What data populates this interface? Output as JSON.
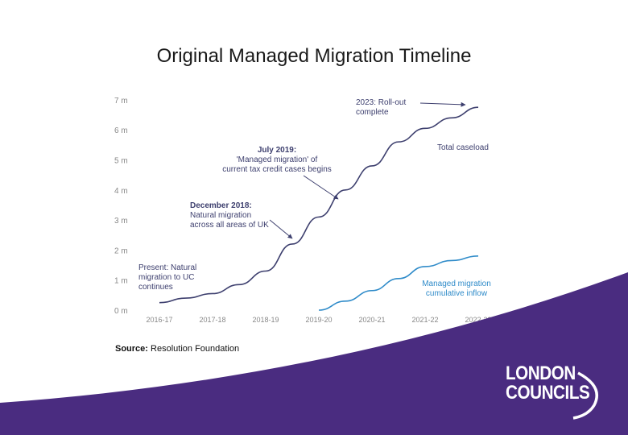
{
  "title": "Original Managed Migration Timeline",
  "source": {
    "label": "Source:",
    "text": "Resolution Foundation"
  },
  "logo": {
    "line1": "LONDON",
    "line2": "COUNCILS"
  },
  "colors": {
    "footer": "#4a2c80",
    "line": "#3d3f6e",
    "line2": "#2f8bc9",
    "tick": "#888888",
    "annot": "#3d3f6e"
  },
  "chart_data": {
    "type": "line",
    "categories": [
      "2016-17",
      "2017-18",
      "2018-19",
      "2019-20",
      "2020-21",
      "2021-22",
      "2022-23"
    ],
    "yticks": [
      "0 m",
      "1 m",
      "2 m",
      "3 m",
      "4 m",
      "5 m",
      "6 m",
      "7 m"
    ],
    "ylim": [
      0,
      7
    ],
    "series": [
      {
        "name": "Total caseload",
        "x": [
          0,
          0.5,
          1,
          1.5,
          2,
          2.5,
          3,
          3.5,
          4,
          4.5,
          5,
          5.5,
          6
        ],
        "values": [
          0.25,
          0.4,
          0.55,
          0.85,
          1.3,
          2.2,
          3.1,
          4.0,
          4.8,
          5.6,
          6.05,
          6.4,
          6.75
        ]
      },
      {
        "name": "Managed migration cumulative inflow",
        "x": [
          3,
          3.5,
          4,
          4.5,
          5,
          5.5,
          6
        ],
        "values": [
          0,
          0.3,
          0.65,
          1.05,
          1.45,
          1.65,
          1.8
        ]
      }
    ],
    "annotations": [
      {
        "id": "present",
        "lines": [
          "Present: Natural",
          "migration to UC",
          "continues"
        ]
      },
      {
        "id": "dec2018",
        "lines": [
          "December 2018:",
          "Natural migration",
          "across all areas of UK"
        ]
      },
      {
        "id": "jul2019",
        "lines": [
          "July 2019:",
          "'Managed migration' of",
          "current tax credit cases begins"
        ]
      },
      {
        "id": "roll",
        "lines": [
          "2023: Roll-out",
          "complete"
        ]
      },
      {
        "id": "total",
        "lines": [
          "Total caseload"
        ]
      },
      {
        "id": "mm",
        "lines": [
          "Managed migration",
          "cumulative inflow"
        ]
      }
    ]
  }
}
